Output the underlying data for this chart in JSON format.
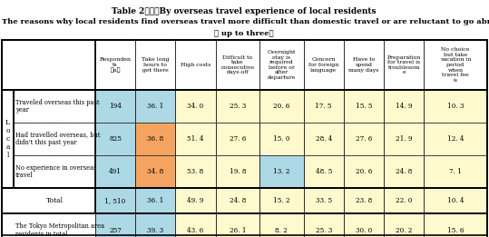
{
  "title1": "Table 2：　　By overseas travel experience of local residents",
  "title2": "The reasons why local residents find overseas travel more difficult than domestic travel or are reluctant to go abroad",
  "title3": "（ up to three）",
  "col_headers": [
    "Responden\nts\n（n）",
    "Take long\nhours to\nget there",
    "High costs",
    "Difficult to\ntake\nconsecutive\ndays-off",
    "Overnight\nstay is\nrequired\nbefore or\nafter\ndeparture",
    "Concern\nfor foreign\nlanguage",
    "Have to\nspend\nmany days",
    "Preparation\nfor travel is\ntroublesom\ne",
    "No choice\nbut take\nvacation in\nperiod\nwhen\ntravel fee\nis"
  ],
  "rows": [
    {
      "label": "Traveled overseas this past\nyear",
      "values": [
        "194",
        "36. 1",
        "34. 0",
        "25. 3",
        "20. 6",
        "17. 5",
        "15. 5",
        "14. 9",
        "10. 3"
      ],
      "group": "local"
    },
    {
      "label": "Had travelled overseas, but\ndidn't this past year",
      "values": [
        "825",
        "36. 8",
        "51. 4",
        "27. 6",
        "15. 0",
        "28. 4",
        "27. 6",
        "21. 9",
        "12. 4"
      ],
      "group": "local"
    },
    {
      "label": "No experience in overseas\ntravel",
      "values": [
        "491",
        "34. 8",
        "53. 8",
        "19. 8",
        "13. 2",
        "48. 5",
        "20. 6",
        "24. 8",
        "7. 1"
      ],
      "group": "local"
    },
    {
      "label": "Total",
      "values": [
        "1, 510",
        "36. 1",
        "49. 9",
        "24. 8",
        "15. 2",
        "33. 5",
        "23. 8",
        "22. 0",
        "10. 4"
      ],
      "group": "total"
    },
    {
      "label": "The Tokyo Metropolitan area\nresidents in total",
      "values": [
        "257",
        "39. 3",
        "43. 6",
        "26. 1",
        "8. 2",
        "25. 3",
        "30. 0",
        "20. 2",
        "15. 6"
      ],
      "group": "tokyo"
    }
  ],
  "cell_colors": [
    [
      "#add8e6",
      "#add8e6",
      "#fffacd",
      "#fffacd",
      "#fffacd",
      "#fffacd",
      "#fffacd",
      "#fffacd",
      "#fffacd"
    ],
    [
      "#add8e6",
      "#f4a460",
      "#fffacd",
      "#fffacd",
      "#fffacd",
      "#fffacd",
      "#fffacd",
      "#fffacd",
      "#fffacd"
    ],
    [
      "#add8e6",
      "#f4a460",
      "#fffacd",
      "#fffacd",
      "#add8e6",
      "#fffacd",
      "#fffacd",
      "#fffacd",
      "#fffacd"
    ],
    [
      "#add8e6",
      "#add8e6",
      "#fffacd",
      "#fffacd",
      "#fffacd",
      "#fffacd",
      "#fffacd",
      "#fffacd",
      "#fffacd"
    ],
    [
      "#add8e6",
      "#add8e6",
      "#fffacd",
      "#fffacd",
      "#fffacd",
      "#fffacd",
      "#fffacd",
      "#fffacd",
      "#fffacd"
    ]
  ],
  "figsize": [
    5.39,
    2.61
  ],
  "dpi": 100,
  "title_fontsize": 6.5,
  "subtitle_fontsize": 6.0,
  "header_fontsize": 4.5,
  "cell_fontsize": 5.2,
  "label_fontsize": 4.8,
  "group_fontsize": 5.5
}
